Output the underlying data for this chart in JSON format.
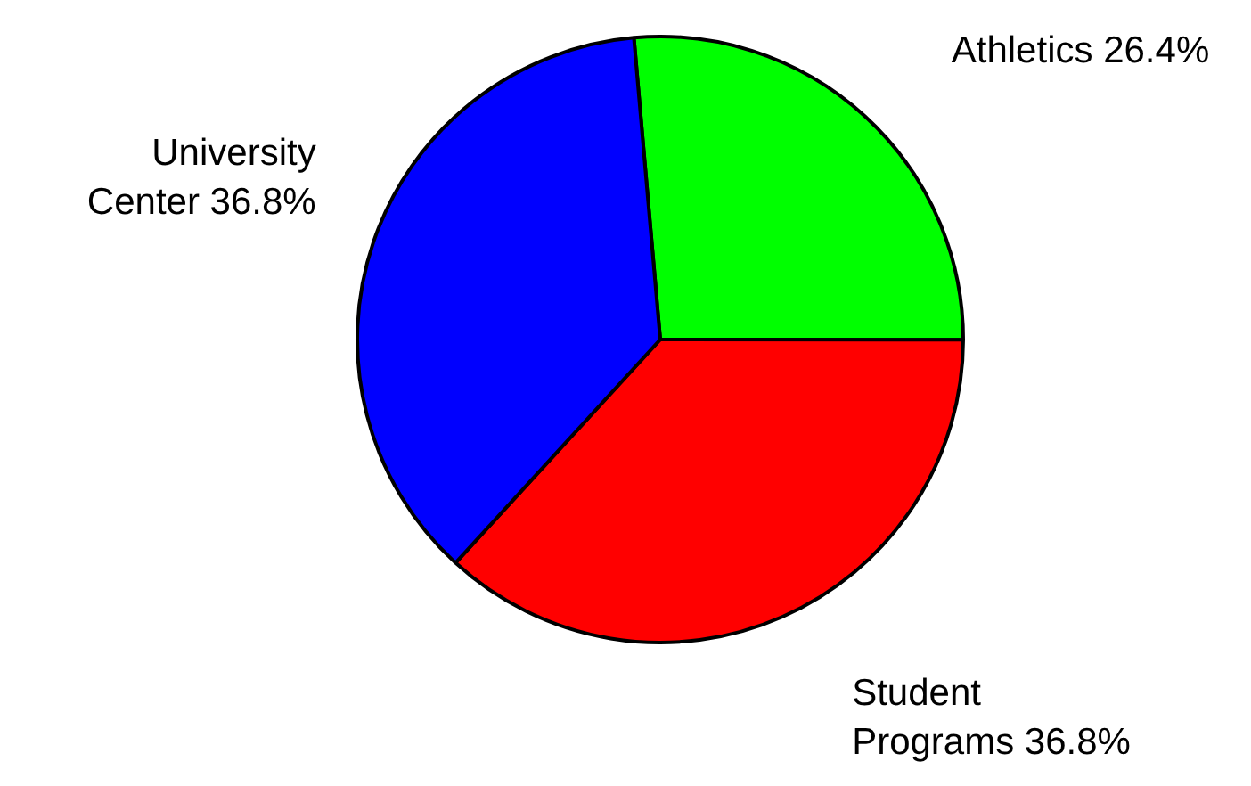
{
  "chart_data": {
    "type": "pie",
    "categories": [
      "Athletics",
      "Student Programs",
      "University Center"
    ],
    "values": [
      26.4,
      36.8,
      36.8
    ],
    "value_labels": [
      "26.4%",
      "36.8%",
      "36.8%"
    ],
    "colors": [
      "#00ff00",
      "#ff0000",
      "#0000ff"
    ]
  }
}
